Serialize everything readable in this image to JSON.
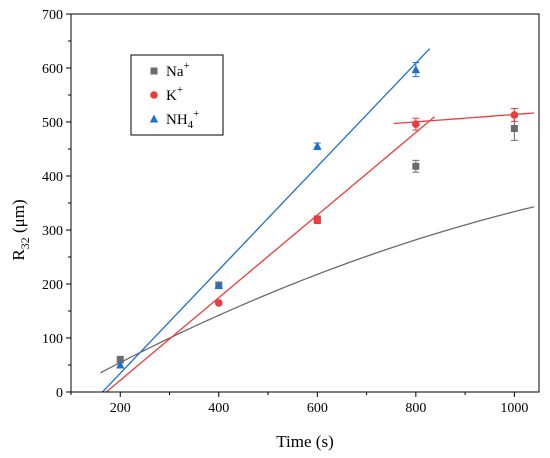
{
  "chart_data": {
    "type": "scatter",
    "xlabel": "Time (s)",
    "ylabel_main": "R",
    "ylabel_sub": "32",
    "ylabel_rest": " (μm)",
    "xlim": [
      100,
      1050
    ],
    "ylim": [
      0,
      700
    ],
    "xticks": [
      "200",
      "400",
      "600",
      "800",
      "1000"
    ],
    "xtick_values": [
      200,
      400,
      600,
      800,
      1000
    ],
    "yticks": [
      "0",
      "100",
      "200",
      "300",
      "400",
      "500",
      "600",
      "700"
    ],
    "ytick_values": [
      0,
      100,
      200,
      300,
      400,
      500,
      600,
      700
    ],
    "grid": false,
    "legend_position": "top-left",
    "series": [
      {
        "name": "Na",
        "name_sup": "+",
        "name_sub": "",
        "color": "#6b6b6b",
        "marker": "square",
        "points": [
          {
            "x": 200,
            "y": 60,
            "err": 6
          },
          {
            "x": 400,
            "y": 198,
            "err": 4
          },
          {
            "x": 600,
            "y": 320,
            "err": 6
          },
          {
            "x": 800,
            "y": 418,
            "err": 11
          },
          {
            "x": 1000,
            "y": 488,
            "err": 22
          }
        ],
        "fit": {
          "kind": "quadratic",
          "coef": [
            -44.7,
            0.5257,
            -0.000147
          ],
          "range": [
            160,
            1040
          ]
        }
      },
      {
        "name": "K",
        "name_sup": "+",
        "name_sub": "",
        "color": "#ee3b3b",
        "marker": "circle",
        "points": [
          {
            "x": 400,
            "y": 165,
            "err": 0
          },
          {
            "x": 600,
            "y": 318,
            "err": 6
          },
          {
            "x": 800,
            "y": 496,
            "err": 11
          },
          {
            "x": 1000,
            "y": 513,
            "err": 12
          }
        ],
        "fit": {
          "kind": "linear",
          "coef": [
            -131.2,
            0.7647
          ],
          "range": [
            172,
            838
          ]
        },
        "fit2": {
          "kind": "linear",
          "coef": [
            445.6,
            0.0683
          ],
          "range": [
            755,
            1040
          ]
        }
      },
      {
        "name": "NH",
        "name_sup": "+",
        "name_sub": "4",
        "color": "#1f6fcf",
        "marker": "triangle",
        "points": [
          {
            "x": 200,
            "y": 50,
            "err": 0
          },
          {
            "x": 400,
            "y": 197,
            "err": 0
          },
          {
            "x": 600,
            "y": 455,
            "err": 6
          },
          {
            "x": 800,
            "y": 597,
            "err": 13
          }
        ],
        "fit": {
          "kind": "linear",
          "coef": [
            -156.9,
            0.9574
          ],
          "range": [
            164,
            828
          ]
        }
      }
    ]
  }
}
